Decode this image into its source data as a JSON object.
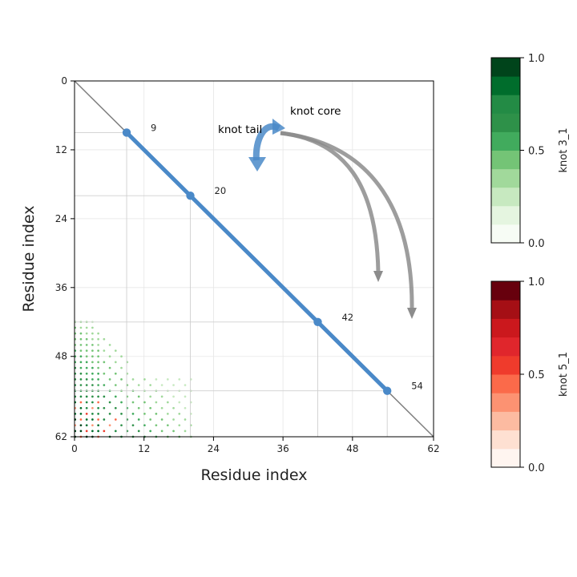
{
  "chart_data": {
    "type": "scatter",
    "title": "",
    "xlabel": "Residue index",
    "ylabel": "Residue index",
    "xlim": [
      0,
      62
    ],
    "ylim": [
      62,
      0
    ],
    "xticks": [
      0,
      12,
      24,
      36,
      48,
      62
    ],
    "yticks": [
      0,
      12,
      24,
      36,
      48,
      62
    ],
    "diagonal_color": "#7f7f7f",
    "knot_core_color": "#4a89c8",
    "knot_core_range": [
      9,
      54
    ],
    "highlight_points": [
      {
        "index": 9,
        "label": "9"
      },
      {
        "index": 20,
        "label": "20"
      },
      {
        "index": 42,
        "label": "42"
      },
      {
        "index": 54,
        "label": "54"
      }
    ],
    "annotations": {
      "knot_core": "knot core",
      "knot_tail": "knot tail"
    },
    "heatmap_region": {
      "x_range": [
        0,
        20
      ],
      "y_range": [
        42,
        62
      ],
      "dominant_series": "knot 3_1",
      "secondary_series": "knot 5_1"
    },
    "colorbars": [
      {
        "name": "knot 3_1",
        "min": "0.0",
        "mid": "0.5",
        "max": "1.0",
        "colors": [
          "#f7fcf5",
          "#e5f5e0",
          "#c7e9c0",
          "#a1d99b",
          "#74c476",
          "#41ab5d",
          "#2e9149",
          "#238b45",
          "#006d2c",
          "#00441b"
        ]
      },
      {
        "name": "knot 5_1",
        "min": "0.0",
        "mid": "0.5",
        "max": "1.0",
        "colors": [
          "#fff5f0",
          "#fee0d2",
          "#fcbba1",
          "#fc9272",
          "#fb6a4a",
          "#ef3b2c",
          "#e0262c",
          "#cb181d",
          "#a50f15",
          "#67000d"
        ]
      }
    ]
  }
}
